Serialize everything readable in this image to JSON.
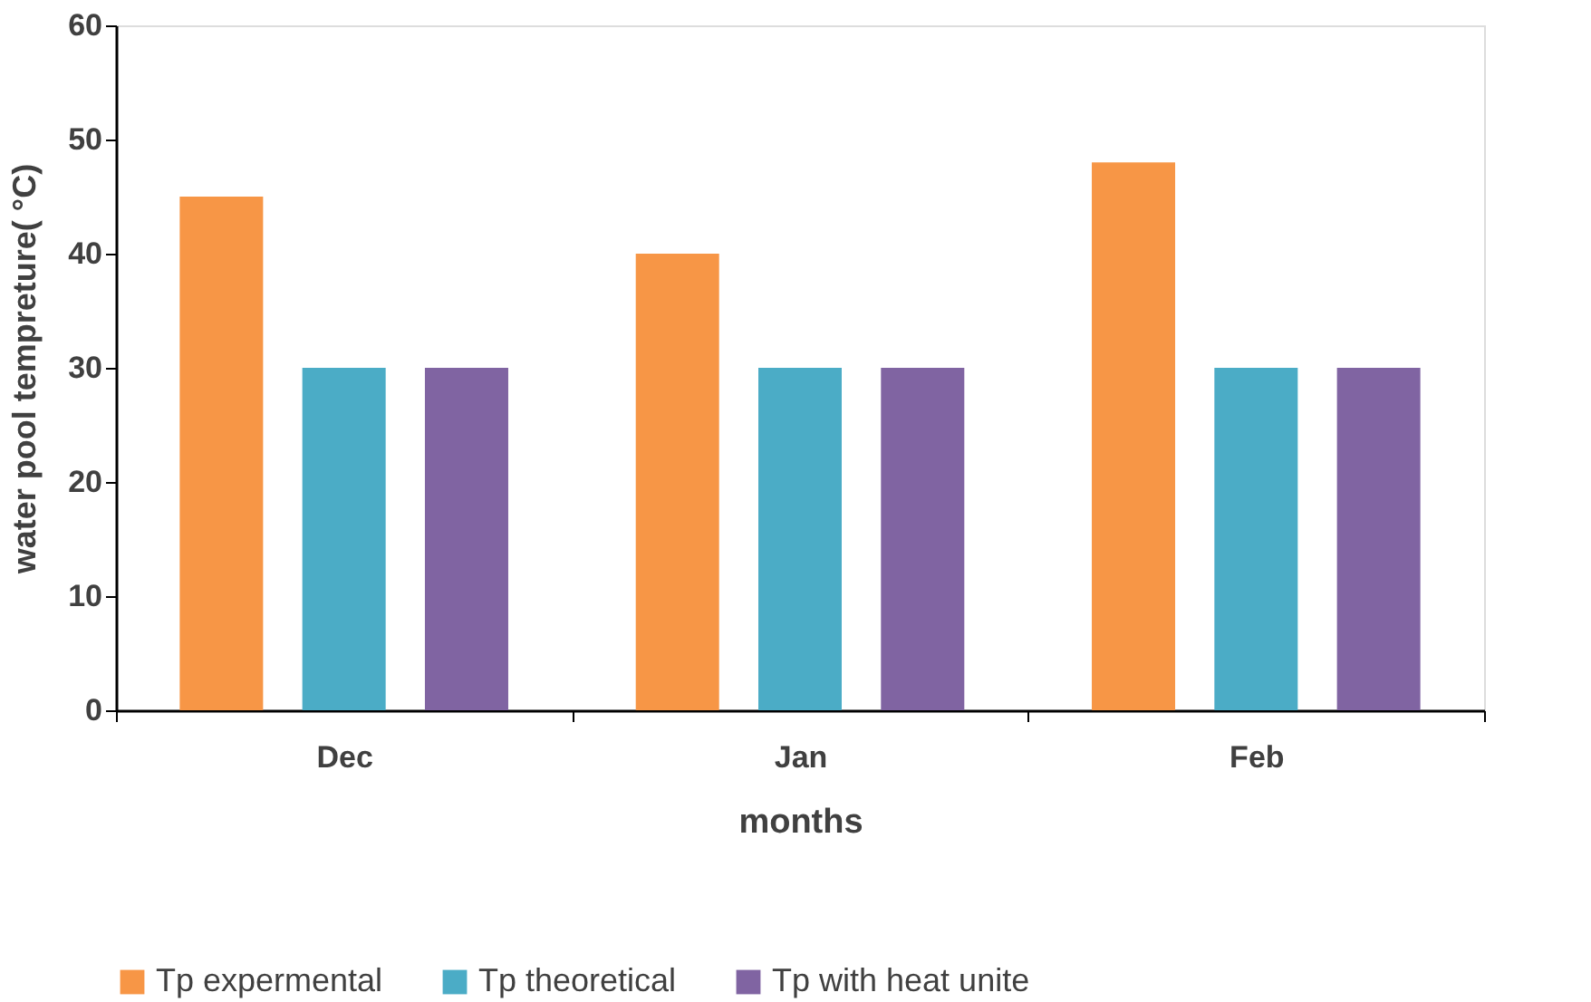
{
  "chart_data": {
    "type": "bar",
    "xlabel": "months",
    "ylabel": "water pool tempreture( °C)",
    "categories": [
      "Dec",
      "Jan",
      "Feb"
    ],
    "series": [
      {
        "name": "Tp expermental",
        "color": "#f79646",
        "values": [
          45,
          40,
          48
        ]
      },
      {
        "name": "Tp theoretical",
        "color": "#4bacc6",
        "values": [
          30,
          30,
          30
        ]
      },
      {
        "name": "Tp with heat unite",
        "color": "#8064a2",
        "values": [
          30,
          30,
          30
        ]
      }
    ],
    "ylim": [
      0,
      60
    ],
    "yticks": [
      0,
      10,
      20,
      30,
      40,
      50,
      60
    ],
    "grid": false,
    "legend": "bottom"
  }
}
